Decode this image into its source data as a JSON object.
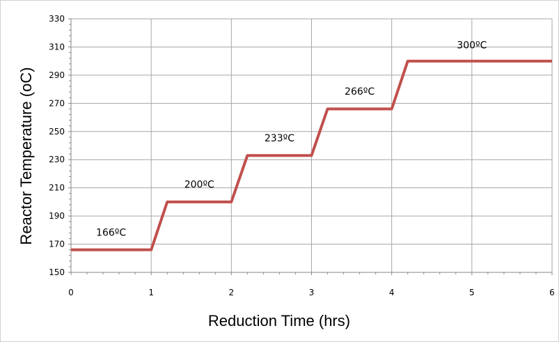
{
  "chart_data": {
    "type": "line",
    "title": "",
    "xlabel": "Reduction Time (hrs)",
    "ylabel": "Reactor Temperature (oC)",
    "xlim": [
      0,
      6
    ],
    "ylim": [
      150,
      330
    ],
    "xticks": [
      0,
      1,
      2,
      3,
      4,
      5,
      6
    ],
    "yticks": [
      150,
      170,
      190,
      210,
      230,
      250,
      270,
      290,
      310,
      330
    ],
    "grid": true,
    "legend": "none",
    "series": [
      {
        "color": "#c0504d",
        "x": [
          0,
          1,
          1.2,
          2,
          2.2,
          3,
          3.2,
          4,
          4.2,
          6
        ],
        "y": [
          166,
          166,
          200,
          200,
          233,
          233,
          266,
          266,
          300,
          300
        ]
      }
    ],
    "annotations": [
      {
        "text": "166ºC",
        "x": 0.5,
        "y": 176
      },
      {
        "text": "200ºC",
        "x": 1.6,
        "y": 210
      },
      {
        "text": "233ºC",
        "x": 2.6,
        "y": 243
      },
      {
        "text": "266ºC",
        "x": 3.6,
        "y": 276
      },
      {
        "text": "300ºC",
        "x": 5.0,
        "y": 309
      }
    ]
  }
}
